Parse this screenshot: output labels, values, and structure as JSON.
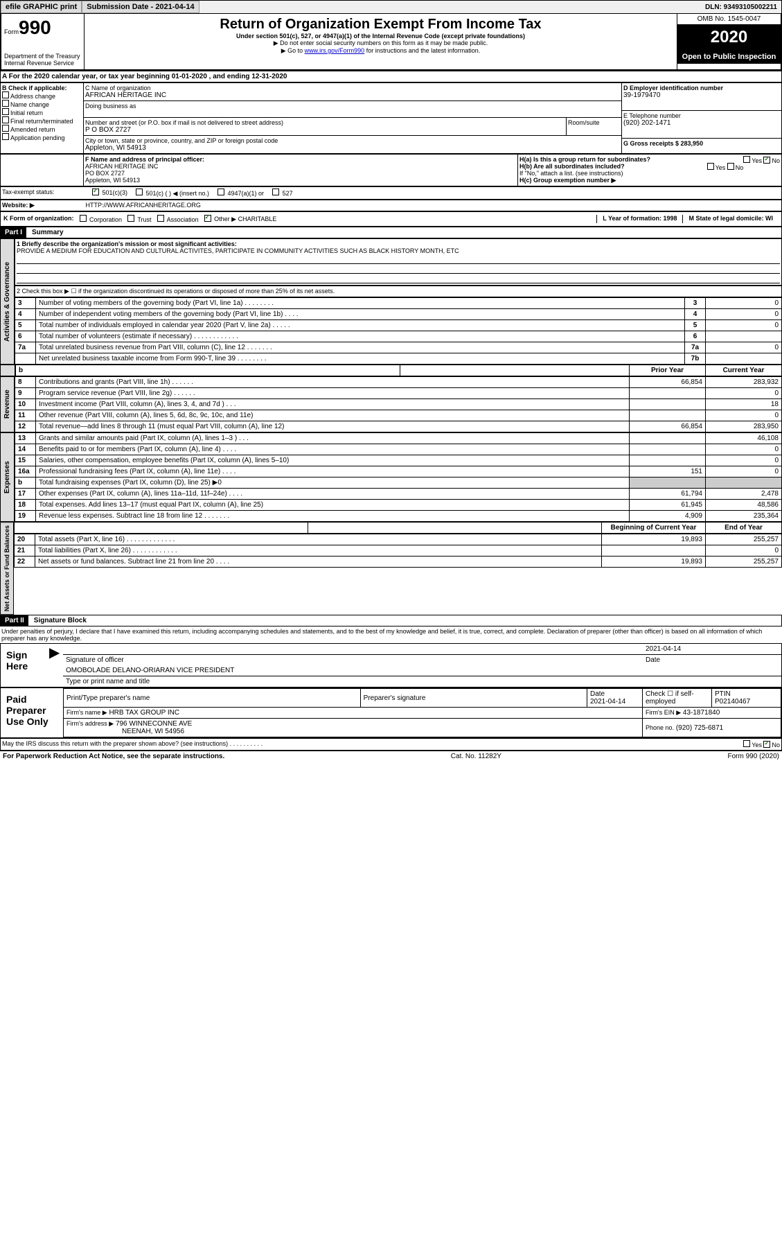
{
  "header": {
    "efile": "efile GRAPHIC print",
    "submission": "Submission Date - 2021-04-14",
    "dln": "DLN: 93493105002211"
  },
  "form": {
    "number": "990",
    "form_label": "Form",
    "title": "Return of Organization Exempt From Income Tax",
    "subtitle": "Under section 501(c), 527, or 4947(a)(1) of the Internal Revenue Code (except private foundations)",
    "note1": "▶ Do not enter social security numbers on this form as it may be made public.",
    "note2_pre": "▶ Go to ",
    "note2_link": "www.irs.gov/Form990",
    "note2_post": " for instructions and the latest information.",
    "dept": "Department of the Treasury\nInternal Revenue Service",
    "omb": "OMB No. 1545-0047",
    "year": "2020",
    "inspection": "Open to Public Inspection"
  },
  "section_a": {
    "period": "A For the 2020 calendar year, or tax year beginning 01-01-2020    , and ending 12-31-2020",
    "b_label": "B Check if applicable:",
    "b_items": [
      "Address change",
      "Name change",
      "Initial return",
      "Final return/terminated",
      "Amended return",
      "Application pending"
    ],
    "c_label": "C Name of organization",
    "c_name": "AFRICAN HERITAGE INC",
    "dba_label": "Doing business as",
    "dba": "",
    "addr_label": "Number and street (or P.O. box if mail is not delivered to street address)",
    "room_label": "Room/suite",
    "addr": "P O BOX 2727",
    "city_label": "City or town, state or province, country, and ZIP or foreign postal code",
    "city": "Appleton, WI  54913",
    "d_label": "D Employer identification number",
    "d_ein": "39-1979470",
    "e_label": "E Telephone number",
    "e_phone": "(920) 202-1471",
    "g_label": "G Gross receipts $ 283,950",
    "f_label": "F  Name and address of principal officer:",
    "f_name": "AFRICAN HERITAGE INC",
    "f_addr1": "PO BOX 2727",
    "f_addr2": "Appleton, WI  54913",
    "ha_label": "H(a)  Is this a group return for subordinates?",
    "hb_label": "H(b)  Are all subordinates included?",
    "hb_note": "If \"No,\" attach a list. (see instructions)",
    "hc_label": "H(c)  Group exemption number ▶",
    "yes": "Yes",
    "no": "No",
    "tax_status": "Tax-exempt status:",
    "ts_501c3": "501(c)(3)",
    "ts_501c": "501(c) (  ) ◀ (insert no.)",
    "ts_4947": "4947(a)(1) or",
    "ts_527": "527",
    "website_label": "Website: ▶",
    "website": "HTTP://WWW.AFRICANHERITAGE.ORG",
    "k_label": "K Form of organization:",
    "k_items": [
      "Corporation",
      "Trust",
      "Association",
      "Other ▶"
    ],
    "k_other": "CHARITABLE",
    "l_label": "L Year of formation: 1998",
    "m_label": "M State of legal domicile: WI"
  },
  "part1": {
    "label": "Part I",
    "title": "Summary",
    "line1_label": "1  Briefly describe the organization's mission or most significant activities:",
    "line1_text": "PROVIDE A MEDIUM FOR EDUCATION AND CULTURAL ACTIVITES, PARTICIPATE IN COMMUNITY ACTIVITIES SUCH AS BLACK HISTORY MONTH, ETC",
    "line2_label": "2   Check this box ▶ ☐  if the organization discontinued its operations or disposed of more than 25% of its net assets.",
    "tabs": {
      "gov": "Activities & Governance",
      "rev": "Revenue",
      "exp": "Expenses",
      "net": "Net Assets or Fund Balances"
    },
    "rows_gov": [
      {
        "n": "3",
        "t": "Number of voting members of the governing body (Part VI, line 1a)   .   .   .   .   .   .   .   .",
        "b": "3",
        "v": "0"
      },
      {
        "n": "4",
        "t": "Number of independent voting members of the governing body (Part VI, line 1b)   .   .   .   .",
        "b": "4",
        "v": "0"
      },
      {
        "n": "5",
        "t": "Total number of individuals employed in calendar year 2020 (Part V, line 2a)   .   .   .   .   .",
        "b": "5",
        "v": "0"
      },
      {
        "n": "6",
        "t": "Total number of volunteers (estimate if necessary)   .   .   .   .   .   .   .   .   .   .   .   .",
        "b": "6",
        "v": ""
      },
      {
        "n": "7a",
        "t": "Total unrelated business revenue from Part VIII, column (C), line 12   .   .   .   .   .   .   .",
        "b": "7a",
        "v": "0"
      },
      {
        "n": "",
        "t": "Net unrelated business taxable income from Form 990-T, line 39   .   .   .   .   .   .   .   .",
        "b": "7b",
        "v": ""
      }
    ],
    "col_hdrs": {
      "prior": "Prior Year",
      "curr": "Current Year"
    },
    "rows_rev": [
      {
        "n": "8",
        "t": "Contributions and grants (Part VIII, line 1h)   .   .   .   .   .   .",
        "p": "66,854",
        "c": "283,932"
      },
      {
        "n": "9",
        "t": "Program service revenue (Part VIII, line 2g)   .   .   .   .   .   .",
        "p": "",
        "c": "0"
      },
      {
        "n": "10",
        "t": "Investment income (Part VIII, column (A), lines 3, 4, and 7d )   .   .   .",
        "p": "",
        "c": "18"
      },
      {
        "n": "11",
        "t": "Other revenue (Part VIII, column (A), lines 5, 6d, 8c, 9c, 10c, and 11e)",
        "p": "",
        "c": "0"
      },
      {
        "n": "12",
        "t": "Total revenue—add lines 8 through 11 (must equal Part VIII, column (A), line 12)",
        "p": "66,854",
        "c": "283,950"
      }
    ],
    "rows_exp": [
      {
        "n": "13",
        "t": "Grants and similar amounts paid (Part IX, column (A), lines 1–3 )   .   .   .",
        "p": "",
        "c": "46,108"
      },
      {
        "n": "14",
        "t": "Benefits paid to or for members (Part IX, column (A), line 4)   .   .   .   .",
        "p": "",
        "c": "0"
      },
      {
        "n": "15",
        "t": "Salaries, other compensation, employee benefits (Part IX, column (A), lines 5–10)",
        "p": "",
        "c": "0"
      },
      {
        "n": "16a",
        "t": "Professional fundraising fees (Part IX, column (A), line 11e)   .   .   .   .",
        "p": "151",
        "c": "0"
      },
      {
        "n": "b",
        "t": "Total fundraising expenses (Part IX, column (D), line 25) ▶0",
        "p": "GRAY",
        "c": "GRAY"
      },
      {
        "n": "17",
        "t": "Other expenses (Part IX, column (A), lines 11a–11d, 11f–24e)   .   .   .   .",
        "p": "61,794",
        "c": "2,478"
      },
      {
        "n": "18",
        "t": "Total expenses. Add lines 13–17 (must equal Part IX, column (A), line 25)",
        "p": "61,945",
        "c": "48,586"
      },
      {
        "n": "19",
        "t": "Revenue less expenses. Subtract line 18 from line 12  .   .   .   .   .   .   .",
        "p": "4,909",
        "c": "235,364"
      }
    ],
    "net_hdrs": {
      "beg": "Beginning of Current Year",
      "end": "End of Year"
    },
    "rows_net": [
      {
        "n": "20",
        "t": "Total assets (Part X, line 16)  .   .   .   .   .   .   .   .   .   .   .   .   .",
        "p": "19,893",
        "c": "255,257"
      },
      {
        "n": "21",
        "t": "Total liabilities (Part X, line 26)  .   .   .   .   .   .   .   .   .   .   .   .",
        "p": "",
        "c": "0"
      },
      {
        "n": "22",
        "t": "Net assets or fund balances. Subtract line 21 from line 20   .   .   .   .",
        "p": "19,893",
        "c": "255,257"
      }
    ]
  },
  "part2": {
    "label": "Part II",
    "title": "Signature Block",
    "decl": "Under penalties of perjury, I declare that I have examined this return, including accompanying schedules and statements, and to the best of my knowledge and belief, it is true, correct, and complete. Declaration of preparer (other than officer) is based on all information of which preparer has any knowledge.",
    "sign_here": "Sign Here",
    "sig_officer": "Signature of officer",
    "sig_date_label": "Date",
    "sig_date": "2021-04-14",
    "sig_name": "OMOBOLADE DELANO-ORIARAN  VICE PRESIDENT",
    "sig_name_label": "Type or print name and title",
    "paid": "Paid Preparer Use Only",
    "prep_name_label": "Print/Type preparer's name",
    "prep_sig_label": "Preparer's signature",
    "prep_date_label": "Date",
    "prep_date": "2021-04-14",
    "prep_check_label": "Check ☐ if self-employed",
    "ptin_label": "PTIN",
    "ptin": "P02140467",
    "firm_name_label": "Firm's name    ▶",
    "firm_name": "HRB TAX GROUP INC",
    "firm_ein_label": "Firm's EIN ▶",
    "firm_ein": "43-1871840",
    "firm_addr_label": "Firm's address ▶",
    "firm_addr1": "796 WINNECONNE AVE",
    "firm_addr2": "NEENAH, WI  54956",
    "firm_phone_label": "Phone no.",
    "firm_phone": "(920) 725-6871",
    "discuss": "May the IRS discuss this return with the preparer shown above? (see instructions)   .   .   .   .   .   .   .   .   .   ."
  },
  "footer": {
    "left": "For Paperwork Reduction Act Notice, see the separate instructions.",
    "mid": "Cat. No. 11282Y",
    "right": "Form 990 (2020)"
  }
}
